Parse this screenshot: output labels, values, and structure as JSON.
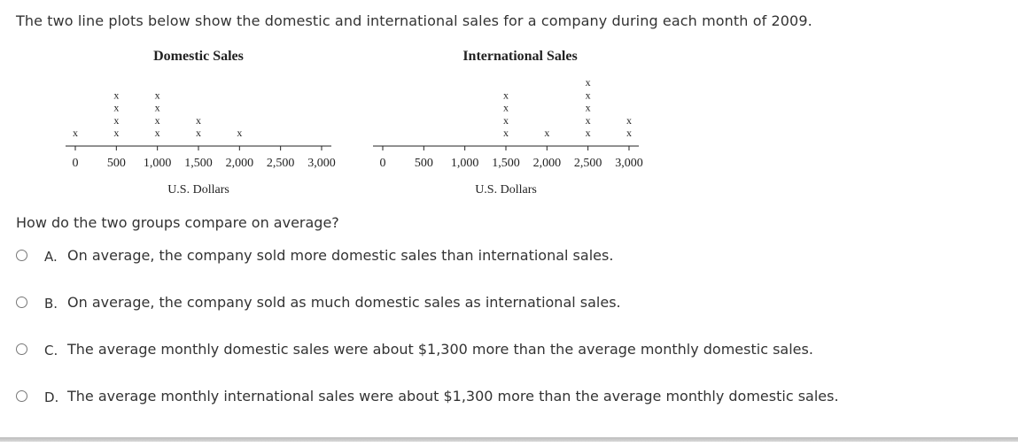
{
  "prompt": "The two line plots below show the domestic and international sales for a company during each month of 2009.",
  "question": "How do the two groups compare on average?",
  "choices": [
    {
      "letter": "A.",
      "text": "On average, the company sold more domestic sales than international sales."
    },
    {
      "letter": "B.",
      "text": "On average, the company sold as much domestic sales as international sales."
    },
    {
      "letter": "C.",
      "text": "The average monthly domestic sales were about $1,300 more than the average monthly domestic sales."
    },
    {
      "letter": "D.",
      "text": "The average monthly international sales were about $1,300 more than the average monthly domestic sales."
    }
  ],
  "chart_data": [
    {
      "type": "scatter",
      "title": "Domestic Sales",
      "xlabel": "U.S. Dollars",
      "marker": "x",
      "ticks": [
        0,
        500,
        1000,
        1500,
        2000,
        2500,
        3000
      ],
      "tick_labels": [
        "0",
        "500",
        "1,000",
        "1,500",
        "2,000",
        "2,500",
        "3,000"
      ],
      "xlim": [
        0,
        3000
      ],
      "points": [
        {
          "x": 0,
          "count": 1
        },
        {
          "x": 500,
          "count": 4
        },
        {
          "x": 1000,
          "count": 4
        },
        {
          "x": 1500,
          "count": 2
        },
        {
          "x": 2000,
          "count": 1
        }
      ]
    },
    {
      "type": "scatter",
      "title": "International Sales",
      "xlabel": "U.S. Dollars",
      "marker": "x",
      "ticks": [
        0,
        500,
        1000,
        1500,
        2000,
        2500,
        3000
      ],
      "tick_labels": [
        "0",
        "500",
        "1,000",
        "1,500",
        "2,000",
        "2,500",
        "3,000"
      ],
      "xlim": [
        0,
        3000
      ],
      "points": [
        {
          "x": 1500,
          "count": 4
        },
        {
          "x": 2000,
          "count": 1
        },
        {
          "x": 2500,
          "count": 5
        },
        {
          "x": 3000,
          "count": 2
        }
      ]
    }
  ]
}
